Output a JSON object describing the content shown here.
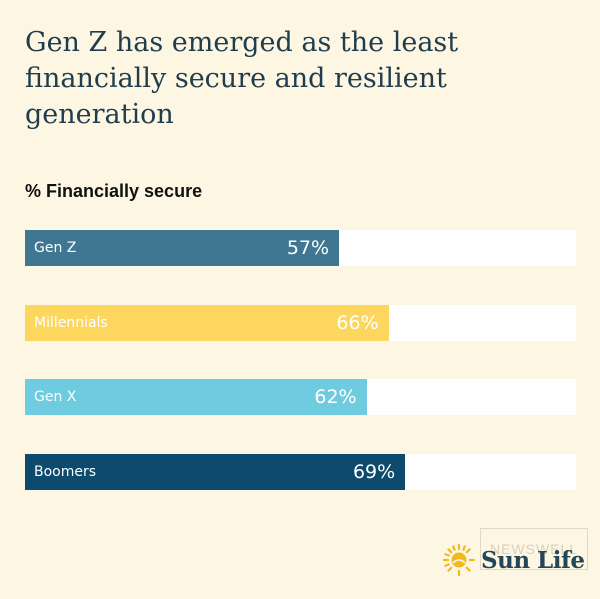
{
  "header": {
    "title": "Gen Z has emerged as the least financially secure and resilient generation",
    "subtitle": "% Financially secure"
  },
  "chart_data": {
    "type": "bar",
    "orientation": "horizontal",
    "title": "Gen Z has emerged as the least financially secure and resilient generation",
    "subtitle": "% Financially secure",
    "categories": [
      "Gen Z",
      "Millennials",
      "Gen X",
      "Boomers"
    ],
    "values": [
      57,
      66,
      62,
      69
    ],
    "value_labels": [
      "57%",
      "66%",
      "62%",
      "69%"
    ],
    "bar_colors": [
      "#3f7793",
      "#fcd65d",
      "#6fcbe0",
      "#0c4a6e"
    ],
    "track_color": "#ffffff",
    "xlim": [
      0,
      100
    ],
    "xlabel": "",
    "ylabel": "",
    "grid": false,
    "legend": "none"
  },
  "logo": {
    "text": "Sun Life",
    "icon": "sun-icon",
    "color": "#234658",
    "accent": "#f2b81d"
  },
  "watermark": {
    "text": "NEWSWELL"
  }
}
